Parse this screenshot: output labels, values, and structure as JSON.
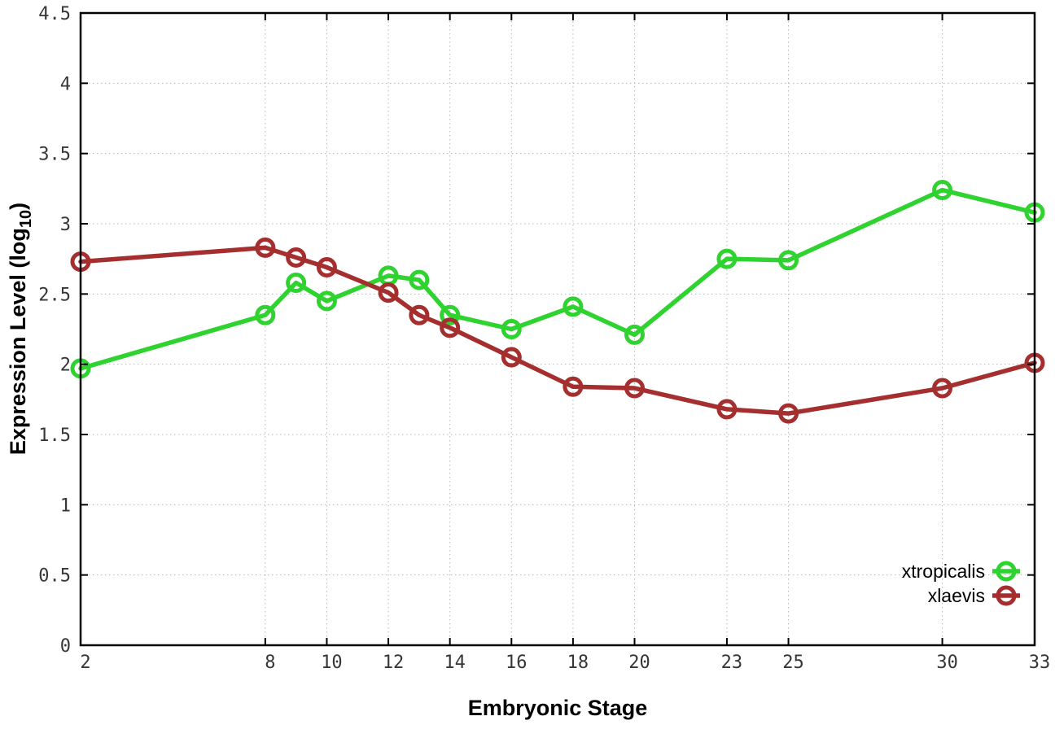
{
  "figure": {
    "background": "#ffffff",
    "axis_color": "#000000",
    "grid_color": "#b8b8b8",
    "tick_label_color": "#363636",
    "ylabel_prefix": "Expression Level (log",
    "ylabel_sub": "10",
    "ylabel_suffix": ")"
  },
  "chart_data": {
    "type": "line",
    "title": "",
    "xlabel": "Embryonic Stage",
    "ylabel": "Expression Level (log10)",
    "xlim": [
      2,
      33
    ],
    "ylim": [
      0,
      4.5
    ],
    "grid": true,
    "grid_style": "dotted",
    "legend_position": "bottom-right-inside",
    "x_ticks": [
      2,
      8,
      10,
      12,
      14,
      16,
      18,
      20,
      23,
      25,
      30,
      33
    ],
    "y_ticks": [
      0,
      0.5,
      1,
      1.5,
      2,
      2.5,
      3,
      3.5,
      4,
      4.5
    ],
    "x": [
      2,
      8,
      9,
      10,
      12,
      13,
      14,
      16,
      18,
      20,
      23,
      25,
      30,
      33
    ],
    "series": [
      {
        "name": "xtropicalis",
        "color": "#2fd32f",
        "marker": "open-circle",
        "values": [
          1.97,
          2.35,
          2.58,
          2.45,
          2.63,
          2.6,
          2.35,
          2.25,
          2.41,
          2.21,
          2.75,
          2.74,
          3.24,
          3.08
        ]
      },
      {
        "name": "xlaevis",
        "color": "#a52f2f",
        "marker": "open-circle",
        "values": [
          2.73,
          2.83,
          2.76,
          2.69,
          2.51,
          2.35,
          2.26,
          2.05,
          1.84,
          1.83,
          1.68,
          1.65,
          1.83,
          2.01
        ]
      }
    ]
  }
}
